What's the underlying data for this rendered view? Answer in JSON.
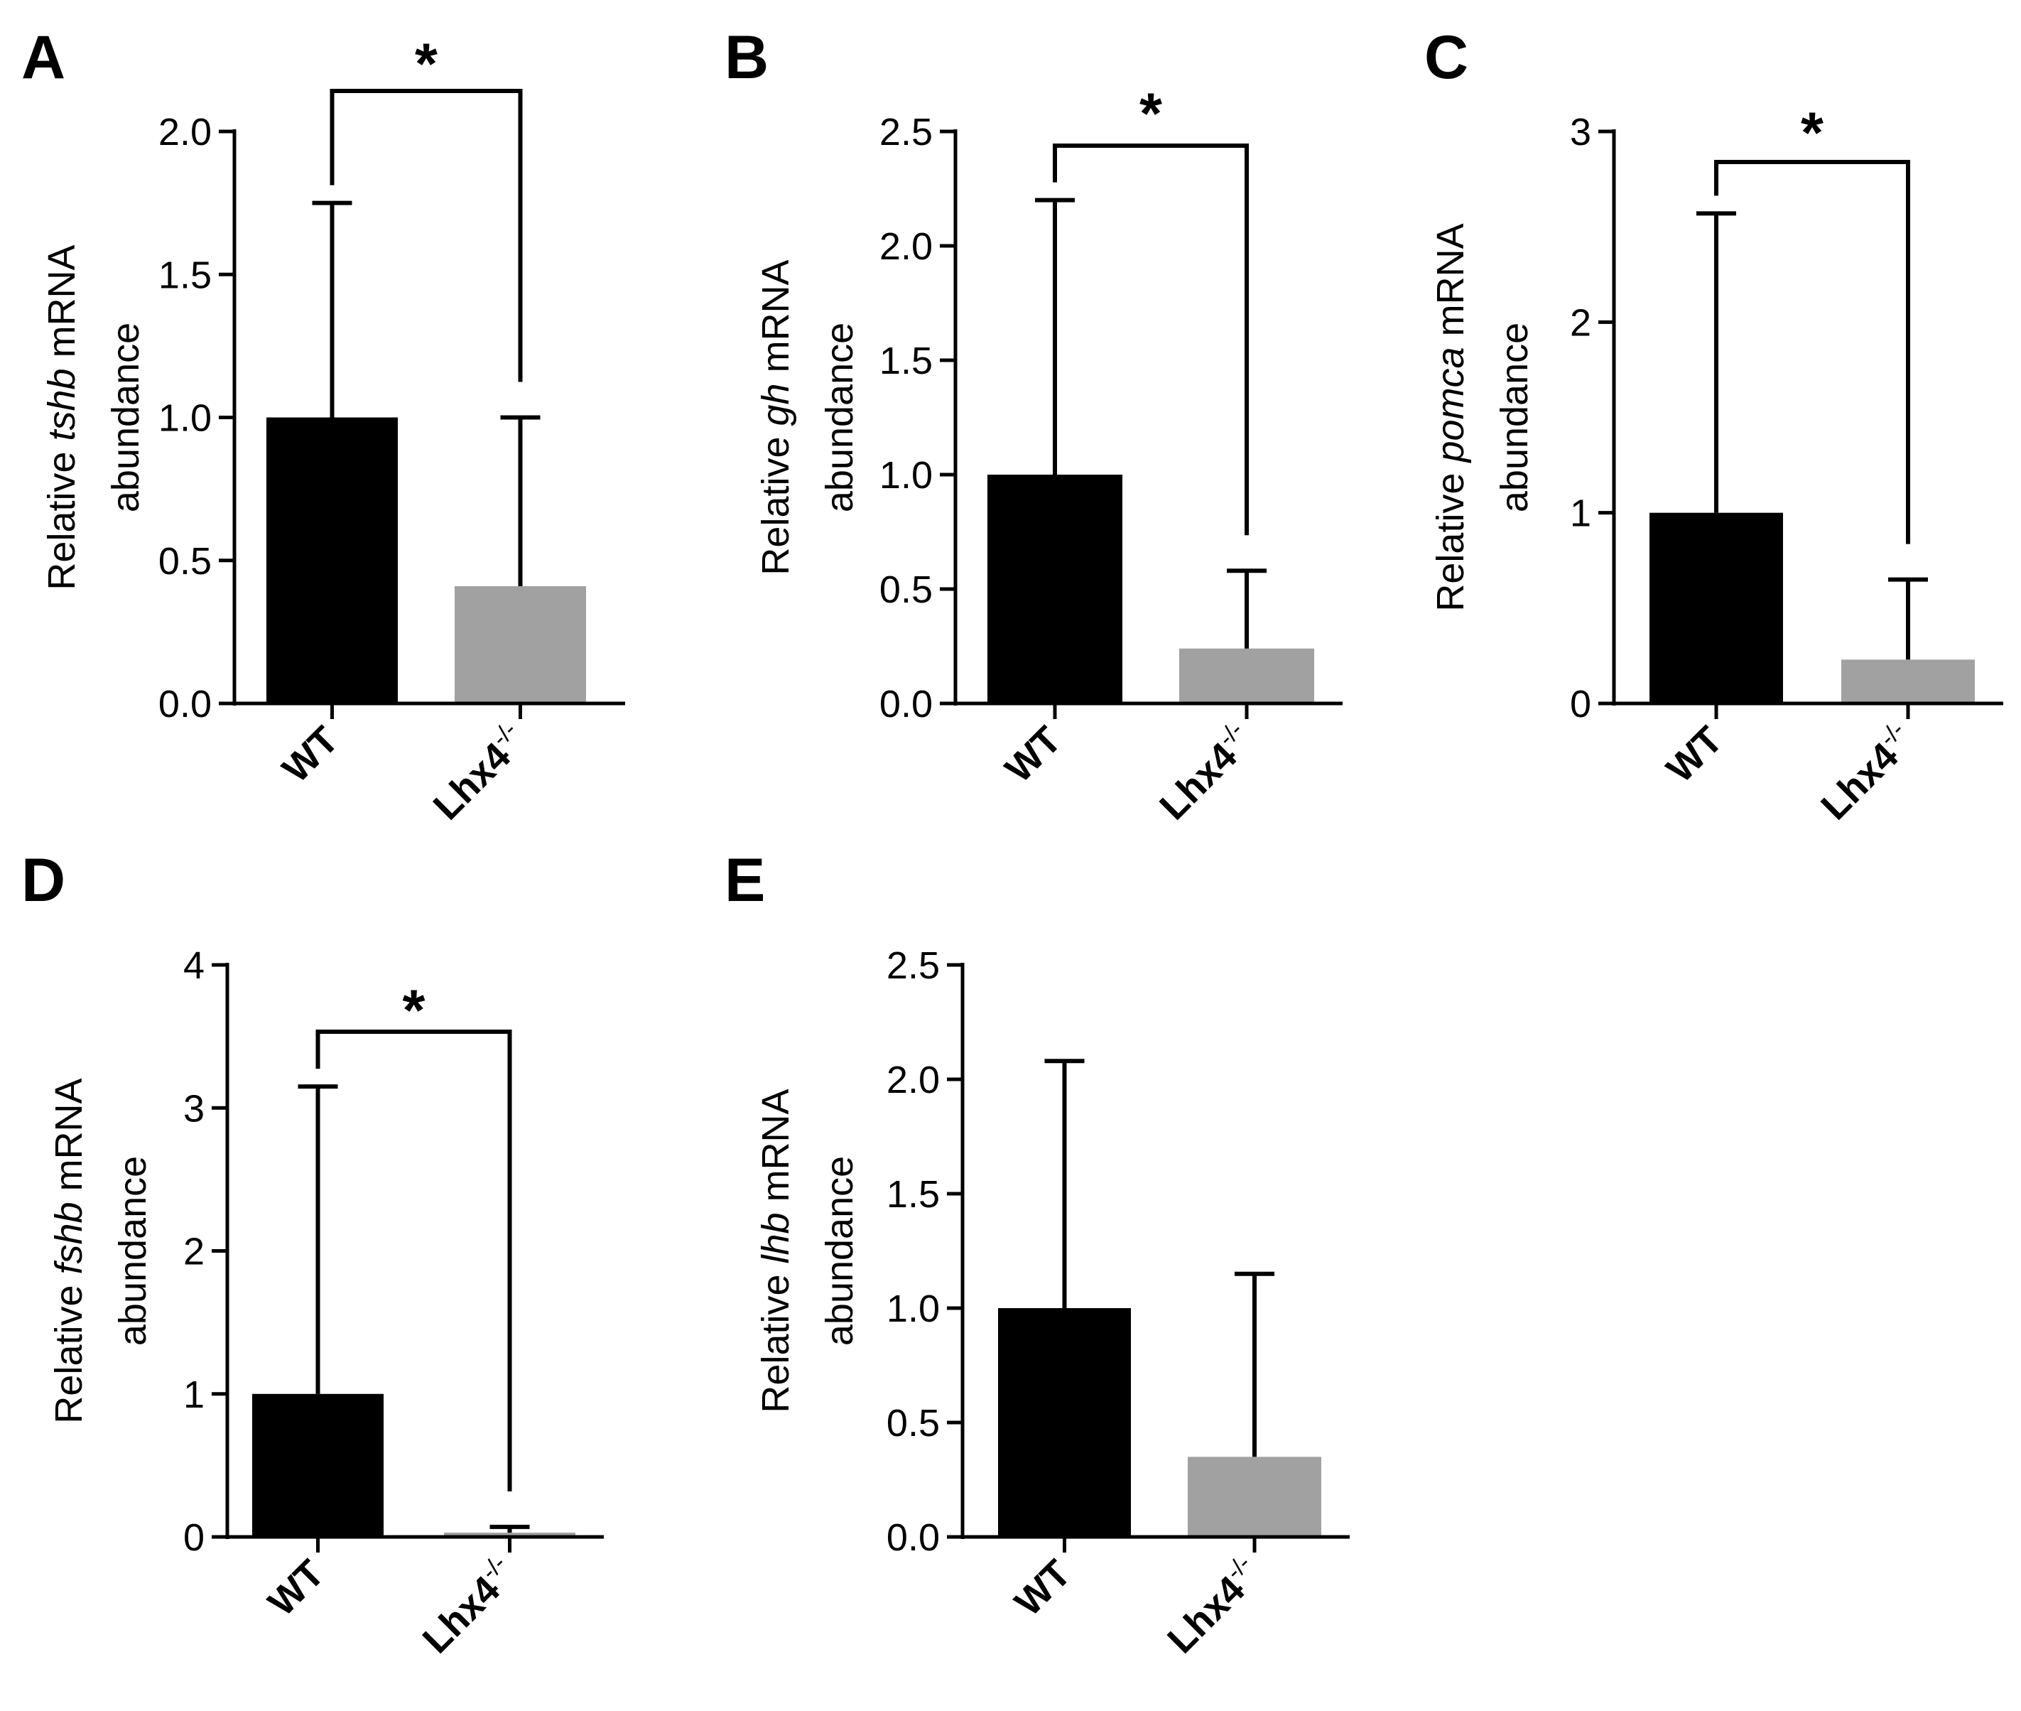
{
  "colors": {
    "wt_bar": "#000000",
    "mutant_bar": "#a1a1a1",
    "axis": "#000000"
  },
  "chart_data": [
    {
      "panel": "A",
      "type": "bar",
      "categories": [
        "WT",
        "Lhx4"
      ],
      "category_superscripts": [
        "",
        "-/-"
      ],
      "values": [
        1.0,
        0.41
      ],
      "error_upper": [
        1.75,
        1.0
      ],
      "ylabel_parts": [
        "Relative ",
        "tshb",
        " mRNA"
      ],
      "ylabel_line2": "abundance",
      "ylim": [
        0,
        2.0
      ],
      "yticks": [
        0,
        0.5,
        1.0,
        1.5,
        2.0
      ],
      "ytick_labels": [
        "0.0",
        "0.5",
        "1.0",
        "1.5",
        "2.0"
      ],
      "significance": "*"
    },
    {
      "panel": "B",
      "type": "bar",
      "categories": [
        "WT",
        "Lhx4"
      ],
      "category_superscripts": [
        "",
        "-/-"
      ],
      "values": [
        1.0,
        0.24
      ],
      "error_upper": [
        2.2,
        0.58
      ],
      "ylabel_parts": [
        "Relative ",
        "gh",
        " mRNA"
      ],
      "ylabel_line2": "abundance",
      "ylim": [
        0,
        2.5
      ],
      "yticks": [
        0,
        0.5,
        1.0,
        1.5,
        2.0,
        2.5
      ],
      "ytick_labels": [
        "0.0",
        "0.5",
        "1.0",
        "1.5",
        "2.0",
        "2.5"
      ],
      "significance": "*"
    },
    {
      "panel": "C",
      "type": "bar",
      "categories": [
        "WT",
        "Lhx4"
      ],
      "category_superscripts": [
        "",
        "-/-"
      ],
      "values": [
        1.0,
        0.23
      ],
      "error_upper": [
        2.57,
        0.65
      ],
      "ylabel_parts": [
        "Relative ",
        "pomca",
        " mRNA"
      ],
      "ylabel_line2": "abundance",
      "ylim": [
        0,
        3
      ],
      "yticks": [
        0,
        1,
        2,
        3
      ],
      "ytick_labels": [
        "0",
        "1",
        "2",
        "3"
      ],
      "significance": "*"
    },
    {
      "panel": "D",
      "type": "bar",
      "categories": [
        "WT",
        "Lhx4"
      ],
      "category_superscripts": [
        "",
        "-/-"
      ],
      "values": [
        1.0,
        0.03
      ],
      "error_upper": [
        3.15,
        0.07
      ],
      "ylabel_parts": [
        "Relative ",
        "fshb",
        " mRNA"
      ],
      "ylabel_line2": "abundance",
      "ylim": [
        0,
        4
      ],
      "yticks": [
        0,
        1,
        2,
        3,
        4
      ],
      "ytick_labels": [
        "0",
        "1",
        "2",
        "3",
        "4"
      ],
      "significance": "*"
    },
    {
      "panel": "E",
      "type": "bar",
      "categories": [
        "WT",
        "Lhx4"
      ],
      "category_superscripts": [
        "",
        "-/-"
      ],
      "values": [
        1.0,
        0.35
      ],
      "error_upper": [
        2.08,
        1.15
      ],
      "ylabel_parts": [
        "Relative ",
        "lhb",
        " mRNA"
      ],
      "ylabel_line2": "abundance",
      "ylim": [
        0,
        2.5
      ],
      "yticks": [
        0,
        0.5,
        1.0,
        1.5,
        2.0,
        2.5
      ],
      "ytick_labels": [
        "0.0",
        "0.5",
        "1.0",
        "1.5",
        "2.0",
        "2.5"
      ],
      "significance": ""
    }
  ]
}
